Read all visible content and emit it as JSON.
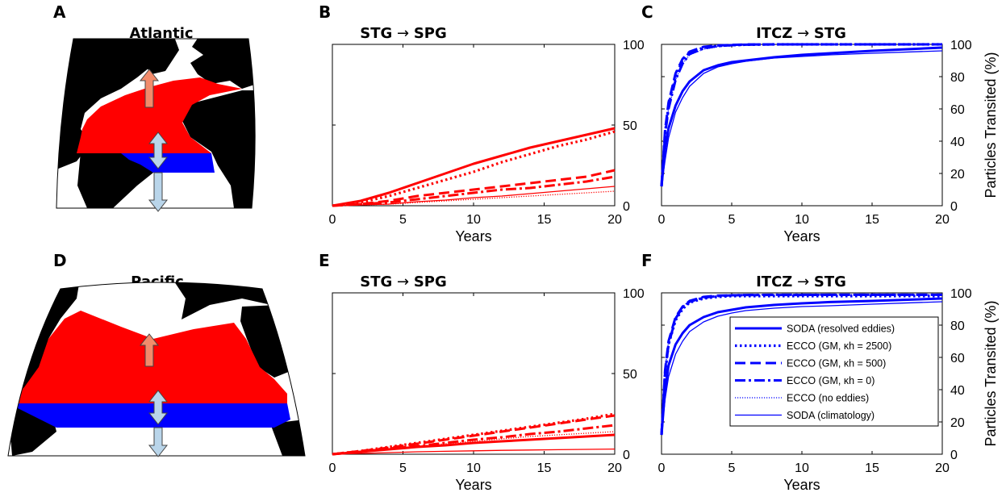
{
  "panel_letters": {
    "A": "A",
    "B": "B",
    "C": "C",
    "D": "D",
    "E": "E",
    "F": "F"
  },
  "maps": {
    "atlantic_title": "Atlantic",
    "pacific_title": "Pacific",
    "colors": {
      "land": "#000000",
      "subtropical_gyre": "#ff0000",
      "itcz_band": "#0000ff",
      "arrow_up": "#f28b6b",
      "arrow_lower": "#b9d5ea"
    }
  },
  "colors": {
    "red": "#ff0000",
    "blue": "#0000ff"
  },
  "legend": {
    "entries": [
      {
        "label": "SODA (resolved eddies)",
        "style": "solid-thick"
      },
      {
        "label": "ECCO (GM, κh = 2500)",
        "style": "dotted-thick"
      },
      {
        "label": "ECCO (GM, κh = 500)",
        "style": "dashed-thick"
      },
      {
        "label": "ECCO (GM, κh = 0)",
        "style": "dashdot-thick"
      },
      {
        "label": "ECCO (no eddies)",
        "style": "dotted-thin"
      },
      {
        "label": "SODA (climatology)",
        "style": "solid-thin"
      }
    ]
  },
  "chart_data": [
    {
      "id": "B",
      "type": "line",
      "title": "STG → SPG",
      "title_from": "STG",
      "title_to": "SPG",
      "xlabel": "Years",
      "ylabel": "",
      "xlim": [
        0,
        20
      ],
      "ylim": [
        0,
        100
      ],
      "xticks": [
        0,
        5,
        10,
        15,
        20
      ],
      "yticks": [
        0,
        50,
        100
      ],
      "color": "red",
      "x": [
        0,
        2,
        4,
        6,
        8,
        10,
        12,
        14,
        16,
        18,
        20
      ],
      "series": [
        {
          "style": "solid-thick",
          "values": [
            0,
            3,
            8,
            14,
            20,
            26,
            31,
            36,
            40,
            44,
            48
          ]
        },
        {
          "style": "dotted-thick",
          "values": [
            0,
            2,
            6,
            11,
            16,
            21,
            27,
            32,
            37,
            41,
            46
          ]
        },
        {
          "style": "dashed-thick",
          "values": [
            0,
            1,
            3,
            6,
            8,
            10,
            12,
            14,
            16,
            18,
            22
          ]
        },
        {
          "style": "dashdot-thick",
          "values": [
            0,
            1,
            2,
            4,
            6,
            8,
            10,
            11,
            13,
            15,
            18
          ]
        },
        {
          "style": "dotted-thin",
          "values": [
            0,
            0.5,
            1,
            2,
            3,
            4,
            5,
            6,
            7,
            8,
            9
          ]
        },
        {
          "style": "solid-thin",
          "values": [
            0,
            0.5,
            1,
            2.5,
            3.5,
            5,
            6,
            7.5,
            9,
            10.5,
            12
          ]
        }
      ]
    },
    {
      "id": "C",
      "type": "line",
      "title": "ITCZ → STG",
      "title_from": "ITCZ",
      "title_to": "STG",
      "xlabel": "Years",
      "ylabel": "Particles Transited (%)",
      "xlim": [
        0,
        20
      ],
      "ylim": [
        0,
        100
      ],
      "xticks": [
        0,
        5,
        10,
        15,
        20
      ],
      "yticks": [
        0,
        20,
        40,
        60,
        80,
        100
      ],
      "color": "blue",
      "x": [
        0,
        0.25,
        0.5,
        1,
        1.5,
        2,
        3,
        4,
        5,
        6,
        8,
        10,
        12,
        15,
        20
      ],
      "series": [
        {
          "style": "solid-thick",
          "values": [
            12,
            35,
            48,
            62,
            71,
            77,
            84,
            87,
            89,
            90,
            92,
            93.5,
            94.5,
            96,
            98
          ]
        },
        {
          "style": "dotted-thick",
          "values": [
            12,
            45,
            62,
            80,
            90,
            95,
            98,
            99,
            99.5,
            99.8,
            100,
            100,
            100,
            100,
            100
          ]
        },
        {
          "style": "dashed-thick",
          "values": [
            12,
            47,
            64,
            82,
            91,
            95.5,
            98.5,
            99.3,
            99.7,
            99.9,
            100,
            100,
            100,
            100,
            100
          ]
        },
        {
          "style": "dashdot-thick",
          "values": [
            12,
            44,
            60,
            78,
            88,
            94,
            97.5,
            99,
            99.5,
            99.8,
            100,
            100,
            100,
            100,
            100
          ]
        },
        {
          "style": "dotted-thin",
          "values": [
            12,
            43,
            60,
            78,
            88,
            93.5,
            97,
            98.5,
            99.3,
            99.6,
            99.9,
            100,
            100,
            100,
            100
          ]
        },
        {
          "style": "solid-thin",
          "values": [
            12,
            28,
            42,
            58,
            67,
            74,
            82,
            86,
            88,
            89.5,
            91.5,
            92.5,
            93.5,
            94.5,
            96
          ]
        }
      ]
    },
    {
      "id": "E",
      "type": "line",
      "title": "STG → SPG",
      "title_from": "STG",
      "title_to": "SPG",
      "xlabel": "Years",
      "ylabel": "",
      "xlim": [
        0,
        20
      ],
      "ylim": [
        0,
        100
      ],
      "xticks": [
        0,
        5,
        10,
        15,
        20
      ],
      "yticks": [
        0,
        50,
        100
      ],
      "color": "red",
      "x": [
        0,
        2,
        4,
        6,
        8,
        10,
        12,
        14,
        16,
        18,
        20
      ],
      "series": [
        {
          "style": "solid-thick",
          "values": [
            0,
            1.5,
            3,
            4.5,
            5.5,
            7,
            8,
            9,
            10,
            11,
            12
          ]
        },
        {
          "style": "dotted-thick",
          "values": [
            0,
            2,
            4.5,
            7,
            9.5,
            12,
            14.5,
            17,
            19.5,
            22,
            25
          ]
        },
        {
          "style": "dashed-thick",
          "values": [
            0,
            2,
            4,
            6.5,
            9,
            11.5,
            14,
            16.5,
            19,
            21.5,
            24
          ]
        },
        {
          "style": "dashdot-thick",
          "values": [
            0,
            1.5,
            3.5,
            5,
            7,
            9,
            10.5,
            12.5,
            14,
            16,
            18
          ]
        },
        {
          "style": "dotted-thin",
          "values": [
            0,
            1.5,
            3,
            5,
            6.5,
            8,
            9.5,
            11,
            12,
            13,
            14
          ]
        },
        {
          "style": "solid-thin",
          "values": [
            0,
            0.5,
            1,
            1.5,
            1.8,
            2.1,
            2.4,
            2.6,
            2.8,
            3,
            3.2
          ]
        }
      ]
    },
    {
      "id": "F",
      "type": "line",
      "title": "ITCZ → STG",
      "title_from": "ITCZ",
      "title_to": "STG",
      "xlabel": "Years",
      "ylabel": "Particles Transited (%)",
      "xlim": [
        0,
        20
      ],
      "ylim": [
        0,
        100
      ],
      "xticks": [
        0,
        5,
        10,
        15,
        20
      ],
      "yticks": [
        0,
        20,
        40,
        60,
        80,
        100
      ],
      "color": "blue",
      "x": [
        0,
        0.25,
        0.5,
        1,
        1.5,
        2,
        3,
        4,
        5,
        6,
        8,
        10,
        12,
        15,
        20
      ],
      "series": [
        {
          "style": "solid-thick",
          "values": [
            12,
            40,
            55,
            68,
            75,
            80,
            85,
            88,
            89.5,
            91,
            92.5,
            93.5,
            94.3,
            95,
            96.5
          ]
        },
        {
          "style": "dotted-thick",
          "values": [
            12,
            50,
            68,
            83,
            90,
            94,
            96.5,
            97.5,
            98,
            98,
            98,
            98,
            98,
            98,
            98
          ]
        },
        {
          "style": "dashed-thick",
          "values": [
            12,
            52,
            70,
            85,
            91.5,
            95,
            97.5,
            98.3,
            98.5,
            98.6,
            98.7,
            98.7,
            98.8,
            98.8,
            98.8
          ]
        },
        {
          "style": "dashdot-thick",
          "values": [
            12,
            50,
            68,
            84,
            91,
            94.5,
            97,
            98,
            98.5,
            98.7,
            98.8,
            98.8,
            98.8,
            98.8,
            98.8
          ]
        },
        {
          "style": "dotted-thin",
          "values": [
            12,
            52,
            70,
            85,
            91.5,
            95,
            97.5,
            98.3,
            98.6,
            98.8,
            98.9,
            99,
            99,
            99,
            99
          ]
        },
        {
          "style": "solid-thin",
          "values": [
            12,
            34,
            48,
            62,
            70,
            76,
            82,
            85.5,
            87.5,
            89,
            90.5,
            91.5,
            92,
            93,
            94.5
          ]
        }
      ]
    }
  ]
}
